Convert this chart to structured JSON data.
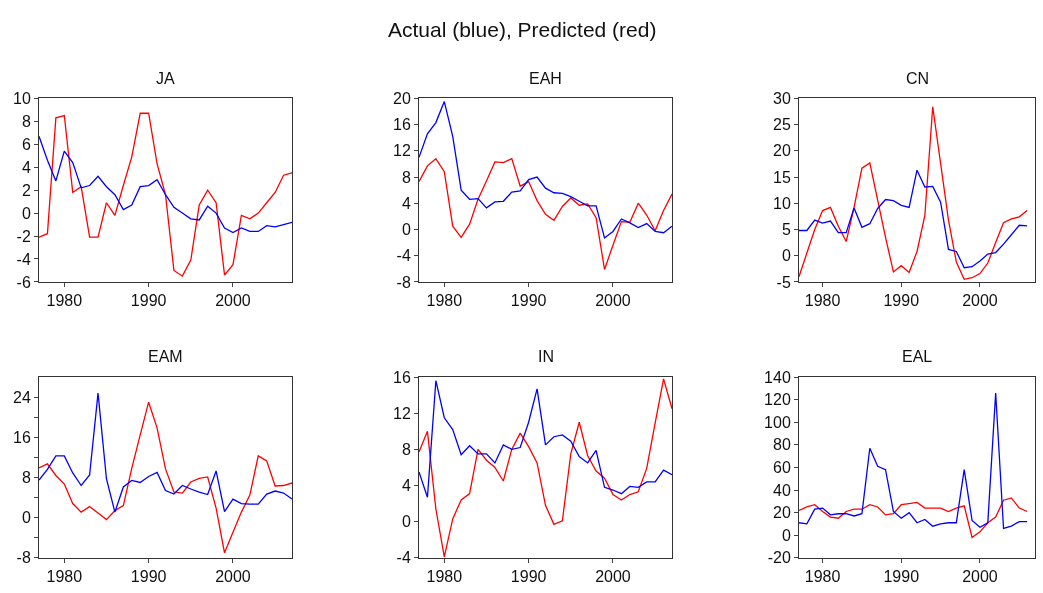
{
  "chart_data": [
    {
      "type": "line",
      "title": "JA",
      "annotations": [
        "Actual (blue), Predicted (red)"
      ],
      "x": [
        1977,
        1978,
        1979,
        1980,
        1981,
        1982,
        1983,
        1984,
        1985,
        1986,
        1987,
        1988,
        1989,
        1990,
        1991,
        1992,
        1993,
        1994,
        1995,
        1996,
        1997,
        1998,
        1999,
        2000,
        2001,
        2002,
        2003,
        2004,
        2005,
        2006,
        2007
      ],
      "xlim": [
        1977,
        2007
      ],
      "xticks": [
        1980,
        1990,
        2000
      ],
      "ylim": [
        -6,
        10
      ],
      "yticks": [
        -6,
        -4,
        -2,
        0,
        2,
        4,
        6,
        8,
        10
      ],
      "series": [
        {
          "color": "#ff0000",
          "values": [
            -2.1,
            -1.8,
            8.3,
            8.5,
            1.8,
            2.3,
            -2.1,
            -2.1,
            0.9,
            -0.2,
            2.4,
            4.9,
            8.7,
            8.7,
            4.3,
            1.6,
            -5.0,
            -5.5,
            -4.1,
            0.7,
            2.0,
            0.9,
            -5.4,
            -4.5,
            -0.2,
            -0.5,
            0.0,
            0.9,
            1.8,
            3.3,
            3.5
          ]
        },
        {
          "color": "#0000ff",
          "values": [
            6.7,
            4.6,
            2.8,
            5.4,
            4.4,
            2.2,
            2.4,
            3.2,
            2.3,
            1.6,
            0.3,
            0.7,
            2.3,
            2.4,
            2.9,
            1.6,
            0.5,
            0.0,
            -0.5,
            -0.6,
            0.6,
            0.0,
            -1.3,
            -1.7,
            -1.3,
            -1.6,
            -1.6,
            -1.1,
            -1.2,
            -1.0,
            -0.8
          ]
        }
      ]
    },
    {
      "type": "line",
      "title": "EAH",
      "x": [
        1977,
        1978,
        1979,
        1980,
        1981,
        1982,
        1983,
        1984,
        1985,
        1986,
        1987,
        1988,
        1989,
        1990,
        1991,
        1992,
        1993,
        1994,
        1995,
        1996,
        1997,
        1998,
        1999,
        2000,
        2001,
        2002,
        2003,
        2004,
        2005,
        2006,
        2007
      ],
      "xlim": [
        1977,
        2007
      ],
      "xticks": [
        1980,
        1990,
        2000
      ],
      "ylim": [
        -8,
        20
      ],
      "yticks": [
        -8,
        -4,
        0,
        4,
        8,
        12,
        16,
        20
      ],
      "series": [
        {
          "color": "#ff0000",
          "values": [
            7.3,
            9.7,
            10.8,
            8.8,
            0.5,
            -1.2,
            0.8,
            4.6,
            7.4,
            10.3,
            10.2,
            10.8,
            6.6,
            7.3,
            4.4,
            2.3,
            1.4,
            3.5,
            4.8,
            3.7,
            3.9,
            1.8,
            -6.1,
            -2.4,
            1.2,
            1.1,
            4.0,
            2.2,
            -0.2,
            2.9,
            5.4
          ]
        },
        {
          "color": "#0000ff",
          "values": [
            11.0,
            14.6,
            16.3,
            19.5,
            14.2,
            6.0,
            4.6,
            4.7,
            3.3,
            4.2,
            4.3,
            5.7,
            5.9,
            7.6,
            8.0,
            6.3,
            5.6,
            5.5,
            5.0,
            4.3,
            3.6,
            3.6,
            -1.3,
            -0.3,
            1.6,
            1.0,
            0.3,
            0.9,
            -0.3,
            -0.5,
            0.5
          ]
        }
      ]
    },
    {
      "type": "line",
      "title": "CN",
      "x": [
        1977,
        1978,
        1979,
        1980,
        1981,
        1982,
        1983,
        1984,
        1985,
        1986,
        1987,
        1988,
        1989,
        1990,
        1991,
        1992,
        1993,
        1994,
        1995,
        1996,
        1997,
        1998,
        1999,
        2000,
        2001,
        2002,
        2003,
        2004,
        2005,
        2006
      ],
      "xlim": [
        1977,
        2007
      ],
      "xticks": [
        1980,
        1990,
        2000
      ],
      "ylim": [
        -5,
        30
      ],
      "yticks": [
        -5,
        0,
        5,
        10,
        15,
        20,
        25,
        30
      ],
      "series": [
        {
          "color": "#ff0000",
          "values": [
            -4.0,
            0.5,
            5.0,
            8.6,
            9.2,
            5.6,
            2.7,
            9.2,
            16.7,
            17.7,
            10.6,
            3.5,
            -3.1,
            -1.9,
            -3.2,
            0.8,
            7.7,
            28.4,
            17.6,
            6.8,
            -1.2,
            -4.5,
            -4.2,
            -3.4,
            -1.4,
            2.5,
            6.3,
            7.0,
            7.4,
            8.6
          ]
        },
        {
          "color": "#0000ff",
          "values": [
            4.8,
            4.8,
            6.8,
            6.2,
            6.6,
            4.4,
            4.4,
            9.1,
            5.4,
            6.1,
            9.0,
            10.7,
            10.5,
            9.6,
            9.2,
            16.3,
            13.1,
            13.2,
            10.2,
            1.2,
            0.8,
            -2.3,
            -2.1,
            -1.0,
            0.3,
            0.6,
            2.2,
            4.0,
            5.8,
            5.7
          ]
        }
      ]
    },
    {
      "type": "line",
      "title": "EAM",
      "x": [
        1977,
        1978,
        1979,
        1980,
        1981,
        1982,
        1983,
        1984,
        1985,
        1986,
        1987,
        1988,
        1989,
        1990,
        1991,
        1992,
        1993,
        1994,
        1995,
        1996,
        1997,
        1998,
        1999,
        2000,
        2001,
        2002,
        2003,
        2004,
        2005,
        2006,
        2007
      ],
      "xlim": [
        1977,
        2007
      ],
      "xticks": [
        1980,
        1990,
        2000
      ],
      "ylim": [
        -8,
        28
      ],
      "yticks": [
        -8,
        {
          "value": -4,
          "label": null
        },
        0,
        {
          "value": 4,
          "label": null
        },
        8,
        {
          "value": 12,
          "label": null
        },
        16,
        {
          "value": 20,
          "label": null
        },
        24
      ],
      "series": [
        {
          "color": "#ff0000",
          "values": [
            9.9,
            10.7,
            8.4,
            6.7,
            2.8,
            1.1,
            2.2,
            0.9,
            -0.4,
            1.4,
            2.4,
            9.8,
            16.5,
            23.0,
            17.9,
            9.7,
            5.1,
            4.9,
            7.1,
            7.8,
            8.1,
            1.9,
            -7.0,
            -2.9,
            1.1,
            4.5,
            12.3,
            11.3,
            6.3,
            6.4,
            6.9
          ]
        },
        {
          "color": "#0000ff",
          "values": [
            7.5,
            9.6,
            12.3,
            12.3,
            8.9,
            6.4,
            8.5,
            24.8,
            7.7,
            1.1,
            6.1,
            7.4,
            7.0,
            8.2,
            9.0,
            5.4,
            4.7,
            6.4,
            5.7,
            5.1,
            4.6,
            9.3,
            1.2,
            3.7,
            2.8,
            2.7,
            2.7,
            4.7,
            5.3,
            4.9,
            3.7
          ]
        }
      ]
    },
    {
      "type": "line",
      "title": "IN",
      "x": [
        1977,
        1978,
        1979,
        1980,
        1981,
        1982,
        1983,
        1984,
        1985,
        1986,
        1987,
        1988,
        1989,
        1990,
        1991,
        1992,
        1993,
        1994,
        1995,
        1996,
        1997,
        1998,
        1999,
        2000,
        2001,
        2002,
        2003,
        2004,
        2005,
        2006,
        2007
      ],
      "xlim": [
        1977,
        2007
      ],
      "xticks": [
        1980,
        1990,
        2000
      ],
      "ylim": [
        -4,
        16
      ],
      "yticks": [
        -4,
        0,
        4,
        8,
        12,
        16
      ],
      "series": [
        {
          "color": "#ff0000",
          "values": [
            7.7,
            10.0,
            1.4,
            -3.9,
            0.3,
            2.4,
            3.1,
            8.0,
            6.8,
            6.0,
            4.5,
            8.0,
            9.8,
            8.3,
            6.5,
            1.8,
            -0.3,
            0.1,
            7.5,
            11.0,
            7.3,
            5.6,
            4.8,
            3.0,
            2.4,
            3.0,
            3.3,
            5.9,
            10.9,
            15.8,
            12.5
          ]
        },
        {
          "color": "#0000ff",
          "values": [
            5.5,
            2.7,
            15.6,
            11.5,
            10.2,
            7.4,
            8.4,
            7.5,
            7.5,
            6.5,
            8.5,
            8.0,
            8.2,
            11.0,
            14.7,
            8.5,
            9.4,
            9.6,
            8.9,
            7.2,
            6.5,
            7.9,
            3.8,
            3.5,
            3.1,
            3.9,
            3.8,
            4.4,
            4.4,
            5.7,
            5.2
          ]
        }
      ]
    },
    {
      "type": "line",
      "title": "EAL",
      "x": [
        1977,
        1978,
        1979,
        1980,
        1981,
        1982,
        1983,
        1984,
        1985,
        1986,
        1987,
        1988,
        1989,
        1990,
        1991,
        1992,
        1993,
        1994,
        1995,
        1996,
        1997,
        1998,
        1999,
        2000,
        2001,
        2002,
        2003,
        2004,
        2005,
        2006
      ],
      "xlim": [
        1977,
        2007
      ],
      "xticks": [
        1980,
        1990,
        2000
      ],
      "ylim": [
        -20,
        140
      ],
      "yticks": [
        -20,
        0,
        20,
        40,
        60,
        80,
        100,
        120,
        140
      ],
      "series": [
        {
          "color": "#ff0000",
          "values": [
            22,
            25,
            27,
            21,
            16,
            15,
            21,
            23,
            23,
            27,
            25,
            18,
            19,
            27,
            28,
            29,
            24,
            24,
            24,
            21,
            24,
            26,
            -2,
            3,
            11,
            16,
            31,
            33,
            24,
            21
          ]
        },
        {
          "color": "#0000ff",
          "values": [
            11,
            10,
            23,
            24,
            18,
            19,
            19,
            17,
            19,
            77,
            61,
            58,
            21,
            15,
            20,
            11,
            14,
            8,
            10,
            11,
            11,
            58,
            13,
            7,
            11,
            126,
            6,
            8,
            12,
            12
          ]
        }
      ]
    }
  ]
}
